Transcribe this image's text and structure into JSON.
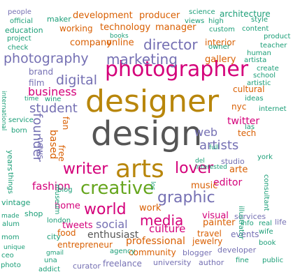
{
  "palette": {
    "dark": "#555555",
    "gold": "#b8860b",
    "magenta": "#d4007a",
    "teal": "#1b9e77",
    "purple": "#7570b3",
    "orange": "#d95f02",
    "green": "#66a61e"
  },
  "words": [
    {
      "text": "design",
      "color": "dark",
      "rot": 0
    },
    {
      "text": "designer",
      "color": "gold",
      "rot": 0
    },
    {
      "text": "photographer",
      "color": "magenta",
      "rot": 0
    },
    {
      "text": "arts",
      "color": "gold",
      "rot": 0
    },
    {
      "text": "creative",
      "color": "green",
      "rot": 0
    },
    {
      "text": "writer",
      "color": "magenta",
      "rot": 0
    },
    {
      "text": "lover",
      "color": "magenta",
      "rot": 0
    },
    {
      "text": "graphic",
      "color": "purple",
      "rot": 0
    },
    {
      "text": "world",
      "color": "magenta",
      "rot": 0
    },
    {
      "text": "media",
      "color": "magenta",
      "rot": 0
    },
    {
      "text": "marketing",
      "color": "purple",
      "rot": 0
    },
    {
      "text": "photography",
      "color": "purple",
      "rot": 0
    },
    {
      "text": "director",
      "color": "purple",
      "rot": 0
    },
    {
      "text": "digital",
      "color": "purple",
      "rot": 0
    },
    {
      "text": "student",
      "color": "purple",
      "rot": 0
    },
    {
      "text": "artists",
      "color": "purple",
      "rot": 0
    },
    {
      "text": "founder",
      "color": "purple",
      "rot": 90
    },
    {
      "text": "social",
      "color": "purple",
      "rot": 0
    },
    {
      "text": "business",
      "color": "magenta",
      "rot": 0
    },
    {
      "text": "fashion",
      "color": "magenta",
      "rot": 0
    },
    {
      "text": "culture",
      "color": "magenta",
      "rot": 0
    },
    {
      "text": "web",
      "color": "purple",
      "rot": 0
    },
    {
      "text": "professional",
      "color": "orange",
      "rot": 0
    },
    {
      "text": "enthusiast",
      "color": "dark",
      "rot": 0
    },
    {
      "text": "editor",
      "color": "magenta",
      "rot": 0
    },
    {
      "text": "twitter",
      "color": "magenta",
      "rot": 0
    },
    {
      "text": "work",
      "color": "orange",
      "rot": 0
    },
    {
      "text": "music",
      "color": "orange",
      "rot": 0
    },
    {
      "text": "home",
      "color": "magenta",
      "rot": 0
    },
    {
      "text": "visual",
      "color": "magenta",
      "rot": 0
    },
    {
      "text": "based",
      "color": "orange",
      "rot": 90
    },
    {
      "text": "tweets",
      "color": "magenta",
      "rot": 0
    },
    {
      "text": "painter",
      "color": "orange",
      "rot": 0
    },
    {
      "text": "development",
      "color": "orange",
      "rot": 0
    },
    {
      "text": "technology",
      "color": "orange",
      "rot": 0
    },
    {
      "text": "manager",
      "color": "orange",
      "rot": 0
    },
    {
      "text": "gallery",
      "color": "orange",
      "rot": 0
    },
    {
      "text": "arte",
      "color": "orange",
      "rot": 0
    },
    {
      "text": "cultural",
      "color": "orange",
      "rot": 0
    },
    {
      "text": "company",
      "color": "orange",
      "rot": 0
    },
    {
      "text": "online",
      "color": "orange",
      "rot": 0
    },
    {
      "text": "interior",
      "color": "orange",
      "rot": 0
    },
    {
      "text": "producer",
      "color": "orange",
      "rot": 0
    },
    {
      "text": "working",
      "color": "orange",
      "rot": 0
    },
    {
      "text": "entrepreneur",
      "color": "orange",
      "rot": 0
    },
    {
      "text": "food",
      "color": "orange",
      "rot": 0
    },
    {
      "text": "community",
      "color": "orange",
      "rot": 0
    },
    {
      "text": "jewelry",
      "color": "orange",
      "rot": 0
    },
    {
      "text": "travel",
      "color": "orange",
      "rot": 0
    },
    {
      "text": "events",
      "color": "purple",
      "rot": 0
    },
    {
      "text": "tech",
      "color": "orange",
      "rot": 0
    },
    {
      "text": "nyc",
      "color": "orange",
      "rot": 0
    },
    {
      "text": "fan",
      "color": "orange",
      "rot": 90
    },
    {
      "text": "news",
      "color": "purple",
      "rot": 90
    },
    {
      "text": "free",
      "color": "orange",
      "rot": 90
    },
    {
      "text": "film",
      "color": "purple",
      "rot": 0
    },
    {
      "text": "brand",
      "color": "purple",
      "rot": 0
    },
    {
      "text": "studio",
      "color": "purple",
      "rot": 0
    },
    {
      "text": "services",
      "color": "purple",
      "rot": 0
    },
    {
      "text": "freelance",
      "color": "purple",
      "rot": 0
    },
    {
      "text": "university",
      "color": "purple",
      "rot": 0
    },
    {
      "text": "blogger",
      "color": "purple",
      "rot": 0
    },
    {
      "text": "author",
      "color": "purple",
      "rot": 0
    },
    {
      "text": "curator",
      "color": "purple",
      "rot": 0
    },
    {
      "text": "developer",
      "color": "purple",
      "rot": 0
    },
    {
      "text": "life",
      "color": "purple",
      "rot": 0
    },
    {
      "text": "people",
      "color": "purple",
      "rot": 0
    },
    {
      "text": "maker",
      "color": "teal",
      "rot": 0
    },
    {
      "text": "official",
      "color": "teal",
      "rot": 0
    },
    {
      "text": "education",
      "color": "teal",
      "rot": 0
    },
    {
      "text": "project",
      "color": "teal",
      "rot": 0
    },
    {
      "text": "check",
      "color": "teal",
      "rot": 0
    },
    {
      "text": "international",
      "color": "teal",
      "rot": 90
    },
    {
      "text": "books",
      "color": "teal",
      "rot": 0
    },
    {
      "text": "science",
      "color": "teal",
      "rot": 0
    },
    {
      "text": "architecture",
      "color": "teal",
      "rot": 0
    },
    {
      "text": "views",
      "color": "teal",
      "rot": 0
    },
    {
      "text": "high",
      "color": "teal",
      "rot": 0
    },
    {
      "text": "style",
      "color": "teal",
      "rot": 0
    },
    {
      "text": "custom",
      "color": "teal",
      "rot": 0
    },
    {
      "text": "content",
      "color": "teal",
      "rot": 0
    },
    {
      "text": "product",
      "color": "teal",
      "rot": 0
    },
    {
      "text": "owner",
      "color": "teal",
      "rot": 0
    },
    {
      "text": "teacher",
      "color": "teal",
      "rot": 0
    },
    {
      "text": "human",
      "color": "teal",
      "rot": 0
    },
    {
      "text": "artista",
      "color": "teal",
      "rot": 0
    },
    {
      "text": "create",
      "color": "teal",
      "rot": 0
    },
    {
      "text": "school",
      "color": "teal",
      "rot": 0
    },
    {
      "text": "artistic",
      "color": "teal",
      "rot": 0
    },
    {
      "text": "ideas",
      "color": "teal",
      "rot": 0
    },
    {
      "text": "internet",
      "color": "teal",
      "rot": 0
    },
    {
      "text": "time",
      "color": "teal",
      "rot": 0
    },
    {
      "text": "wine",
      "color": "teal",
      "rot": 0
    },
    {
      "text": "service",
      "color": "teal",
      "rot": 0
    },
    {
      "text": "born",
      "color": "teal",
      "rot": 0
    },
    {
      "text": "years",
      "color": "teal",
      "rot": 90
    },
    {
      "text": "things",
      "color": "teal",
      "rot": 90
    },
    {
      "text": "museum",
      "color": "teal",
      "rot": 90
    },
    {
      "text": "vintage",
      "color": "teal",
      "rot": 0
    },
    {
      "text": "made",
      "color": "teal",
      "rot": 0
    },
    {
      "text": "alum",
      "color": "teal",
      "rot": 0
    },
    {
      "text": "mom",
      "color": "teal",
      "rot": 0
    },
    {
      "text": "unique",
      "color": "teal",
      "rot": 0
    },
    {
      "text": "ceo",
      "color": "teal",
      "rot": 0
    },
    {
      "text": "photo",
      "color": "teal",
      "rot": 0
    },
    {
      "text": "shop",
      "color": "teal",
      "rot": 0
    },
    {
      "text": "london",
      "color": "teal",
      "rot": 0
    },
    {
      "text": "city",
      "color": "teal",
      "rot": 0
    },
    {
      "text": "gmail",
      "color": "teal",
      "rot": 0
    },
    {
      "text": "una",
      "color": "teal",
      "rot": 0
    },
    {
      "text": "addict",
      "color": "teal",
      "rot": 0
    },
    {
      "text": "agency",
      "color": "teal",
      "rot": 0
    },
    {
      "text": "del",
      "color": "teal",
      "rot": 0
    },
    {
      "text": "interested",
      "color": "teal",
      "rot": 0
    },
    {
      "text": "los",
      "color": "teal",
      "rot": 90
    },
    {
      "text": "full",
      "color": "teal",
      "rot": 0
    },
    {
      "text": "las",
      "color": "teal",
      "rot": 0
    },
    {
      "text": "york",
      "color": "teal",
      "rot": 0
    },
    {
      "text": "consultant",
      "color": "teal",
      "rot": 90
    },
    {
      "text": "illustrator",
      "color": "teal",
      "rot": 90
    },
    {
      "text": "info",
      "color": "teal",
      "rot": 0
    },
    {
      "text": "real",
      "color": "teal",
      "rot": 0
    },
    {
      "text": "wife",
      "color": "teal",
      "rot": 0
    },
    {
      "text": "book",
      "color": "teal",
      "rot": 0
    },
    {
      "text": "fine",
      "color": "teal",
      "rot": 0
    },
    {
      "text": "public",
      "color": "teal",
      "rot": 0
    },
    {
      "text": "blog",
      "color": "teal",
      "rot": 0
    },
    {
      "text": "vida",
      "color": "teal",
      "rot": 90
    }
  ]
}
